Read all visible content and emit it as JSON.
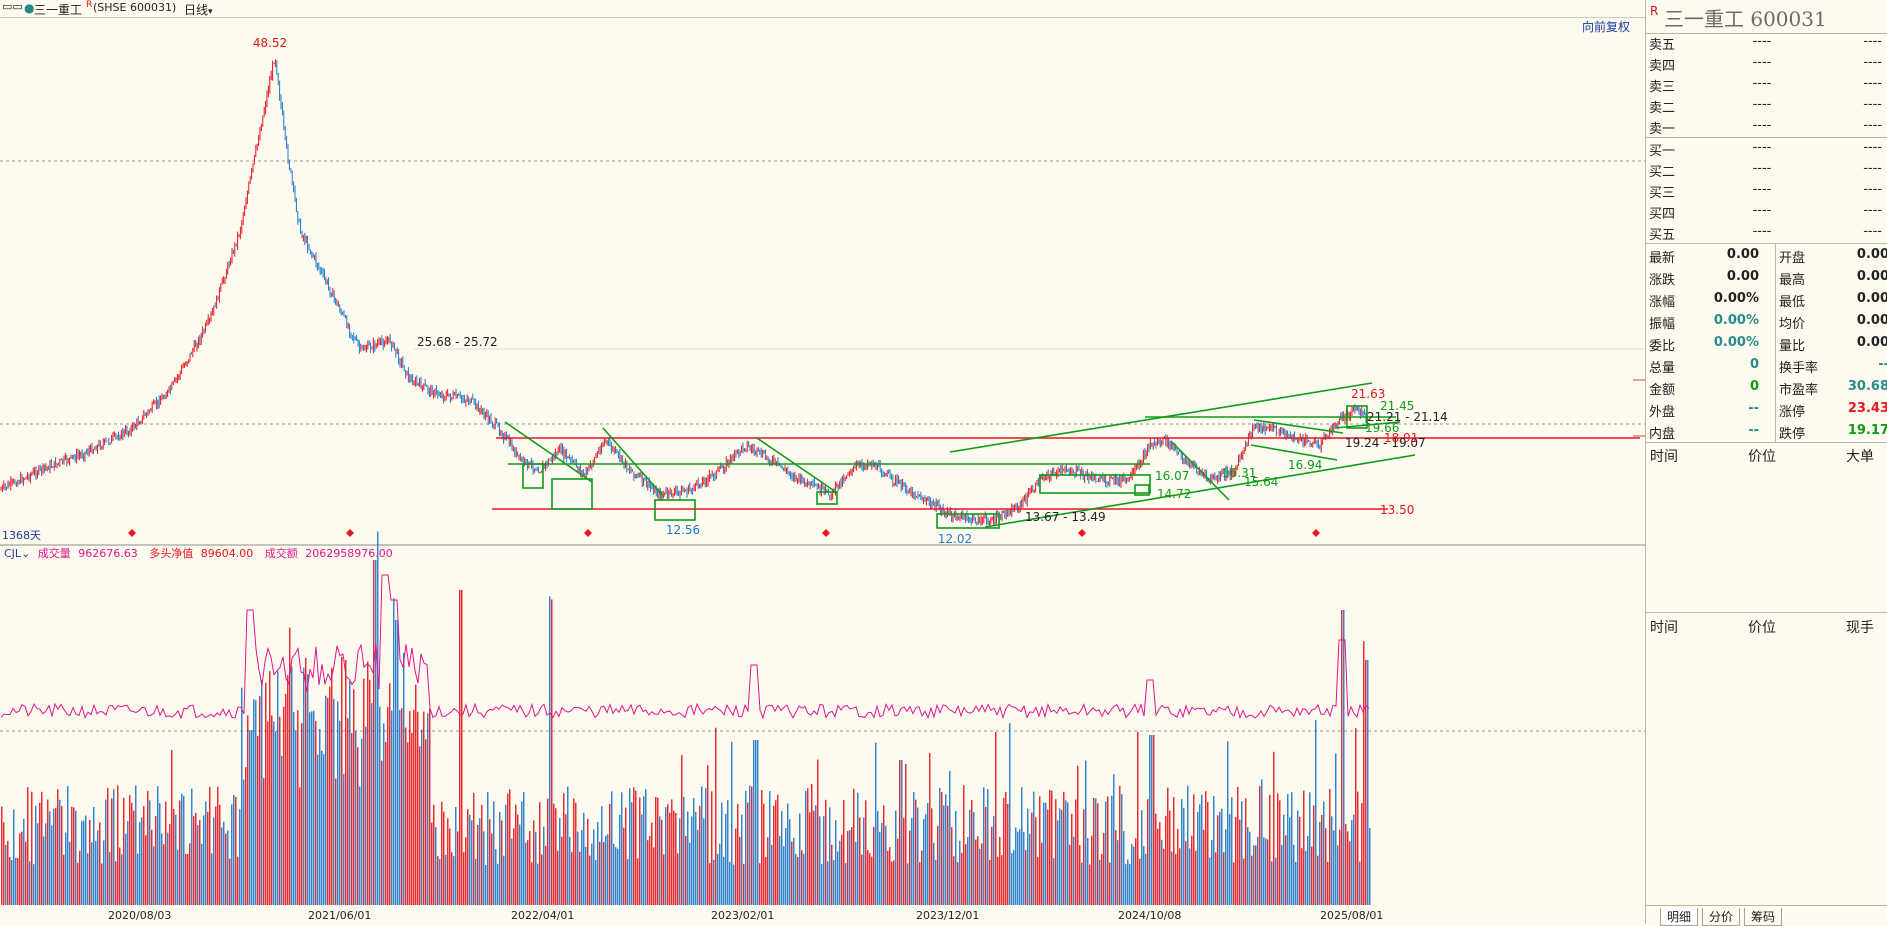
{
  "header": {
    "stock_name": "三一重工",
    "r_mark": "R",
    "code_label": "(SHSE 600031)",
    "period": "日线",
    "adjust_button": "向前复权"
  },
  "price_chart": {
    "annotations": {
      "high": "48.52",
      "range_label": "25.68 - 25.72",
      "low_a": "12.56",
      "low_b": "12.02",
      "pair_a": "13.67 - 13.49",
      "support_line": "13.50",
      "p16_07": "16.07",
      "p14_72": "14.72",
      "p16_31": "16.31",
      "p15_64": "15.64",
      "p16_94": "16.94",
      "p19_24": "19.24 - 19.07",
      "p21_63": "21.63",
      "p21_45": "21.45",
      "p21_21": "21.21 - 21.14",
      "p19_66": "19.66",
      "p18_91": "18.91"
    },
    "days_label": "1368天",
    "colors": {
      "up": "#e8161f",
      "down": "#1f78c8",
      "trendline": "#109a1a",
      "hline": "#e8161f"
    }
  },
  "volume_panel": {
    "indicator": "CJL",
    "vol_label": "成交量",
    "vol_value": "962676.63",
    "net_label": "多头净值",
    "net_value": "89604.00",
    "amt_label": "成交额",
    "amt_value": "2062958976.00"
  },
  "x_axis": [
    "2020/08/03",
    "2021/06/01",
    "2022/04/01",
    "2023/02/01",
    "2023/12/01",
    "2024/10/08",
    "2025/08/01"
  ],
  "right_panel": {
    "r_mark": "R",
    "title": "三一重工  600031",
    "sells": [
      {
        "label": "卖五",
        "price": "----",
        "vol": "----"
      },
      {
        "label": "卖四",
        "price": "----",
        "vol": "----"
      },
      {
        "label": "卖三",
        "price": "----",
        "vol": "----"
      },
      {
        "label": "卖二",
        "price": "----",
        "vol": "----"
      },
      {
        "label": "卖一",
        "price": "----",
        "vol": "----"
      }
    ],
    "buys": [
      {
        "label": "买一",
        "price": "----",
        "vol": "----"
      },
      {
        "label": "买二",
        "price": "----",
        "vol": "----"
      },
      {
        "label": "买三",
        "price": "----",
        "vol": "----"
      },
      {
        "label": "买四",
        "price": "----",
        "vol": "----"
      },
      {
        "label": "买五",
        "price": "----",
        "vol": "----"
      }
    ],
    "stats": [
      {
        "l1": "最新",
        "v1": "0.00",
        "c1": "#222",
        "l2": "开盘",
        "v2": "0.00",
        "c2": "#222"
      },
      {
        "l1": "涨跌",
        "v1": "0.00",
        "c1": "#222",
        "l2": "最高",
        "v2": "0.00",
        "c2": "#222"
      },
      {
        "l1": "涨幅",
        "v1": "0.00%",
        "c1": "#222",
        "l2": "最低",
        "v2": "0.00",
        "c2": "#222"
      },
      {
        "l1": "振幅",
        "v1": "0.00%",
        "c1": "#2a8a8a",
        "l2": "均价",
        "v2": "0.00",
        "c2": "#222"
      },
      {
        "l1": "委比",
        "v1": "0.00%",
        "c1": "#2a8a8a",
        "l2": "量比",
        "v2": "0.00",
        "c2": "#222"
      },
      {
        "l1": "总量",
        "v1": "0",
        "c1": "#2a8a8a",
        "l2": "换手率",
        "v2": "--",
        "c2": "#2a8a8a"
      },
      {
        "l1": "金额",
        "v1": "0",
        "c1": "#109a1a",
        "l2": "市盈率",
        "v2": "30.68",
        "c2": "#2a8a8a"
      },
      {
        "l1": "外盘",
        "v1": "--",
        "c1": "#2a8a8a",
        "l2": "涨停",
        "v2": "23.43",
        "c2": "#e8161f"
      },
      {
        "l1": "内盘",
        "v1": "--",
        "c1": "#2a8a8a",
        "l2": "跌停",
        "v2": "19.17",
        "c2": "#109a1a"
      }
    ],
    "ticks_header": {
      "time": "时间",
      "price": "价位",
      "big": "大单"
    },
    "detail_header": {
      "time": "时间",
      "price": "价位",
      "now": "现手"
    },
    "tabs": [
      "明细",
      "分价",
      "筹码"
    ]
  }
}
